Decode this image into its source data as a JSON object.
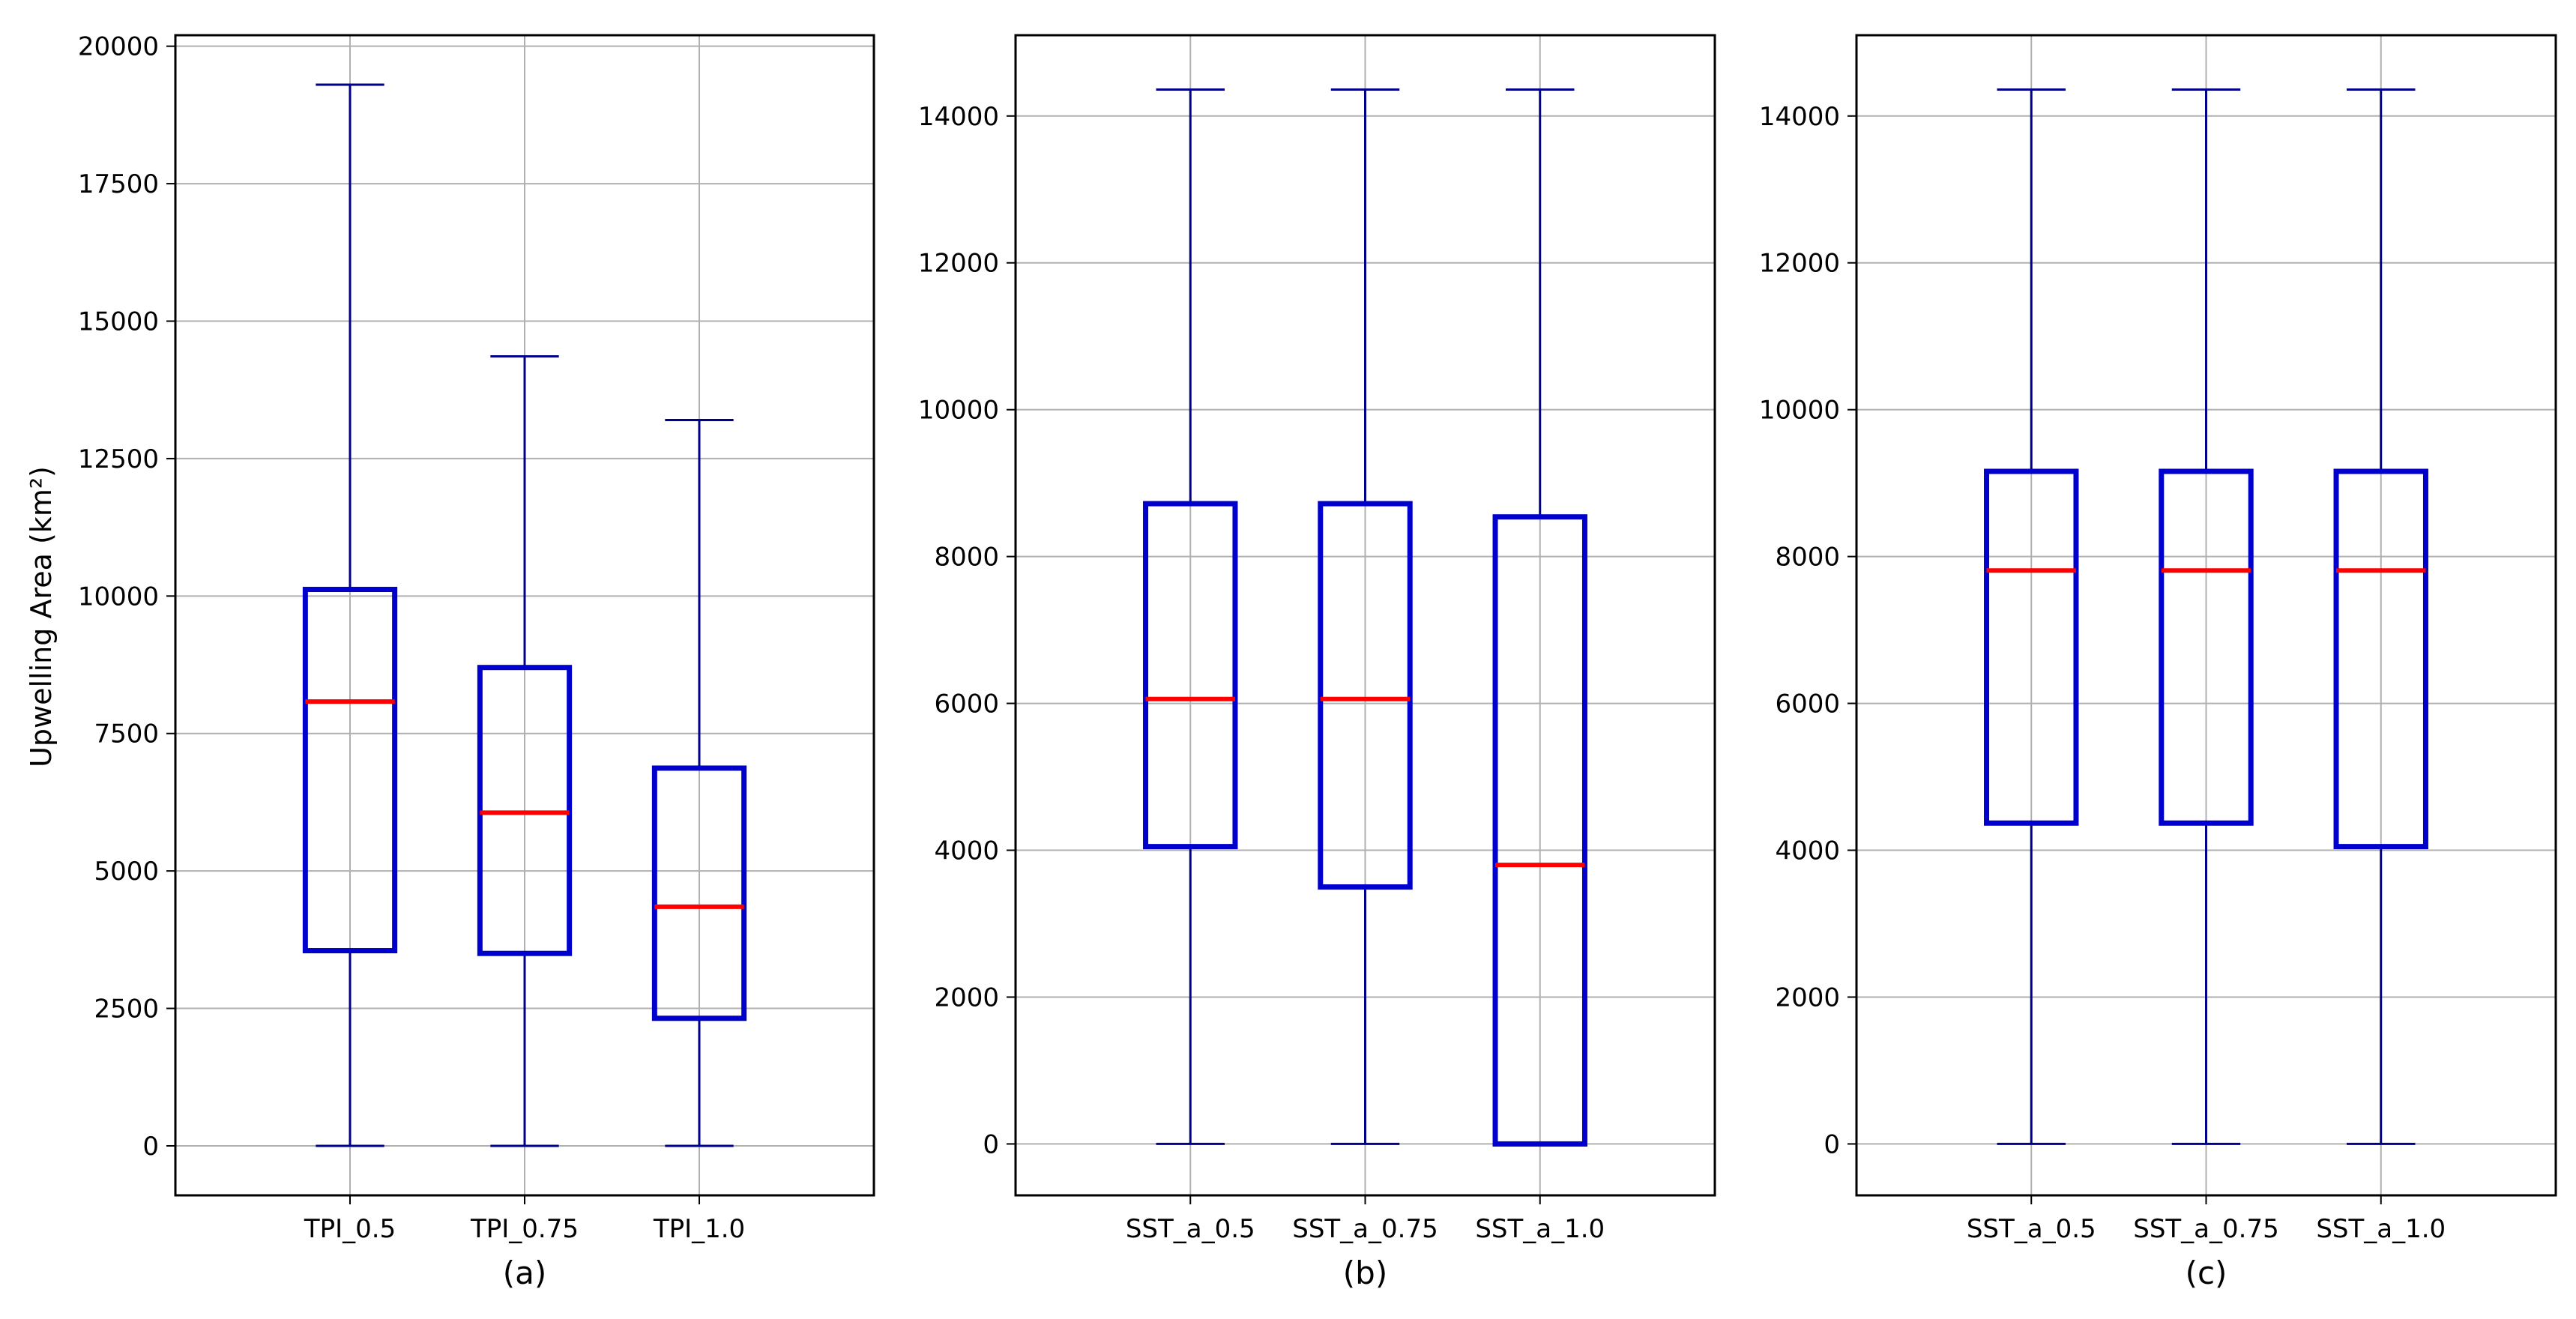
{
  "chart_data": [
    {
      "type": "boxplot",
      "ylabel": "Upwelling Area (km²)",
      "panel_label": "(a)",
      "ylim": [
        -900,
        20200
      ],
      "yticks": [
        0,
        2500,
        5000,
        7500,
        10000,
        12500,
        15000,
        17500,
        20000
      ],
      "ytick_labels": [
        "0",
        "2500",
        "5000",
        "7500",
        "10000",
        "12500",
        "15000",
        "17500",
        "20000"
      ],
      "grid": true,
      "categories": [
        "TPI_0.5",
        "TPI_0.75",
        "TPI_1.0"
      ],
      "boxes": [
        {
          "whisker_low": 0,
          "q1": 3550,
          "median": 8080,
          "q3": 10120,
          "whisker_high": 19300
        },
        {
          "whisker_low": 0,
          "q1": 3500,
          "median": 6060,
          "q3": 8700,
          "whisker_high": 14360
        },
        {
          "whisker_low": 0,
          "q1": 2320,
          "median": 4350,
          "q3": 6870,
          "whisker_high": 13200
        }
      ]
    },
    {
      "type": "boxplot",
      "panel_label": "(b)",
      "ylim": [
        -700,
        15100
      ],
      "yticks": [
        0,
        2000,
        4000,
        6000,
        8000,
        10000,
        12000,
        14000
      ],
      "ytick_labels": [
        "0",
        "2000",
        "4000",
        "6000",
        "8000",
        "10000",
        "12000",
        "14000"
      ],
      "grid": true,
      "categories": [
        "SST_a_0.5",
        "SST_a_0.75",
        "SST_a_1.0"
      ],
      "boxes": [
        {
          "whisker_low": 0,
          "q1": 4050,
          "median": 6060,
          "q3": 8720,
          "whisker_high": 14360
        },
        {
          "whisker_low": 0,
          "q1": 3500,
          "median": 6060,
          "q3": 8720,
          "whisker_high": 14360
        },
        {
          "whisker_low": 0,
          "q1": 0,
          "median": 3800,
          "q3": 8540,
          "whisker_high": 14360
        }
      ]
    },
    {
      "type": "boxplot",
      "panel_label": "(c)",
      "ylim": [
        -700,
        15100
      ],
      "yticks": [
        0,
        2000,
        4000,
        6000,
        8000,
        10000,
        12000,
        14000
      ],
      "ytick_labels": [
        "0",
        "2000",
        "4000",
        "6000",
        "8000",
        "10000",
        "12000",
        "14000"
      ],
      "grid": true,
      "categories": [
        "SST_a_0.5",
        "SST_a_0.75",
        "SST_a_1.0"
      ],
      "boxes": [
        {
          "whisker_low": 0,
          "q1": 4370,
          "median": 7810,
          "q3": 9160,
          "whisker_high": 14360
        },
        {
          "whisker_low": 0,
          "q1": 4370,
          "median": 7810,
          "q3": 9160,
          "whisker_high": 14360
        },
        {
          "whisker_low": 0,
          "q1": 4050,
          "median": 7810,
          "q3": 9160,
          "whisker_high": 14360
        }
      ]
    }
  ],
  "colors": {
    "box": "#0000cc",
    "whisker": "#00008b",
    "median": "#ff0000",
    "grid": "#b0b0b0",
    "axes": "#000000"
  }
}
